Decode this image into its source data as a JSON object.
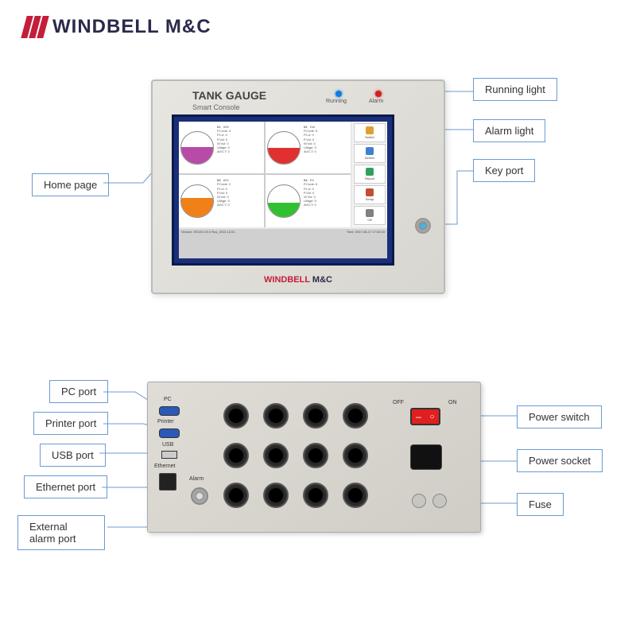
{
  "brand": {
    "name": "WINDBELL M&C",
    "color_accent": "#c41e3a",
    "color_text": "#2a2a4a"
  },
  "front_panel": {
    "title": "TANK GAUGE",
    "subtitle": "Smart Console",
    "running_label": "Running",
    "alarm_label": "Alarm",
    "running_led_color": "#0e7de0",
    "alarm_led_color": "#d02020",
    "brand_footer_accent": "WINDBELL",
    "brand_footer_rest": " M&C",
    "screen": {
      "header": "STATION TANK",
      "footer_left": "Version: SS100-V2.0 Rus_2014.12.01",
      "footer_right": "Time: 2017-08-17 17:02:43",
      "tanks": [
        {
          "id": "01",
          "fuel": "A95",
          "fill_pct": 52,
          "color": "#b84aa8",
          "lines": [
            "P.Code: 3",
            "P.Lvl: 0",
            "P.Vol: 0",
            "W.Vol: 0",
            "Ullage: 0",
            "AVG.T: 0"
          ]
        },
        {
          "id": "02",
          "fuel": "DI#",
          "fill_pct": 48,
          "color": "#e03030",
          "lines": [
            "P.Code: 5",
            "P.Lvl: 0",
            "P.Vol: 0",
            "W.Vol: 0",
            "Ullage: 0",
            "AVG.T: 0"
          ]
        },
        {
          "id": "03",
          "fuel": "A92",
          "fill_pct": 60,
          "color": "#f08018",
          "lines": [
            "P.Code: 2",
            "P.Lvl: 0",
            "P.Vol: 0",
            "W.Vol: 0",
            "Ullage: 0",
            "AVG.T: 0"
          ]
        },
        {
          "id": "04",
          "fuel": "E5",
          "fill_pct": 45,
          "color": "#30c030",
          "lines": [
            "P.Code: 6",
            "P.Lvl: 0",
            "P.Vol: 0",
            "W.Vol: 0",
            "Ullage: 0",
            "AVG.T: 0"
          ]
        }
      ],
      "sidebar": [
        {
          "label": "Switch",
          "icon_color": "#e0a030"
        },
        {
          "label": "Deliver",
          "icon_color": "#4080d0"
        },
        {
          "label": "Report",
          "icon_color": "#30a060"
        },
        {
          "label": "Setup",
          "icon_color": "#c05030"
        },
        {
          "label": "Off",
          "icon_color": "#808080"
        }
      ]
    }
  },
  "callouts_front": {
    "home_page": "Home page",
    "running_light": "Running light",
    "alarm_light": "Alarm light",
    "key_port": "Key port"
  },
  "back_panel": {
    "pc": "PC",
    "printer": "Printer",
    "usb": "USB",
    "ethernet": "Ethernet",
    "alarm": "Alarm",
    "off": "OFF",
    "on": "ON"
  },
  "callouts_back": {
    "pc_port": "PC port",
    "printer_port": "Printer port",
    "usb_port": "USB port",
    "ethernet_port": "Ethernet port",
    "external_alarm": "External alarm port",
    "power_switch": "Power switch",
    "power_socket": "Power socket",
    "fuse": "Fuse"
  },
  "style": {
    "callout_border": "#6b9bd1",
    "callout_fontsize": 13,
    "panel_bg": "#e0ddd6",
    "gland_color": "#222222",
    "switch_color": "#e02020"
  }
}
